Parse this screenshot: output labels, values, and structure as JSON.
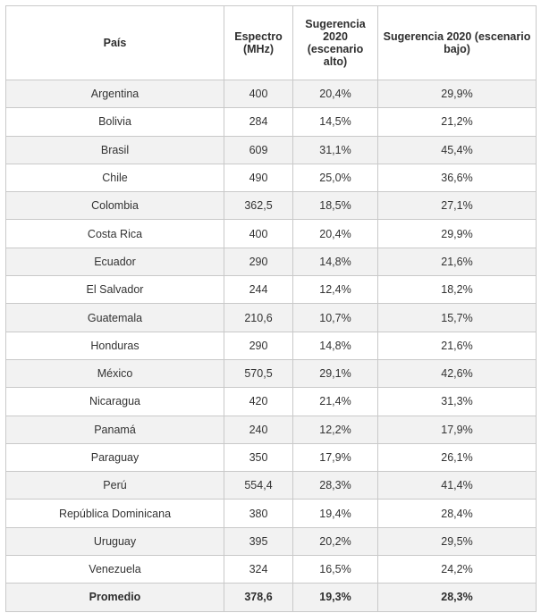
{
  "table": {
    "headers": [
      "País",
      "Espectro (MHz)",
      "Sugerencia 2020 (escenario alto)",
      "Sugerencia 2020 (escenario bajo)"
    ],
    "rows": [
      [
        "Argentina",
        "400",
        "20,4%",
        "29,9%"
      ],
      [
        "Bolivia",
        "284",
        "14,5%",
        "21,2%"
      ],
      [
        "Brasil",
        "609",
        "31,1%",
        "45,4%"
      ],
      [
        "Chile",
        "490",
        "25,0%",
        "36,6%"
      ],
      [
        "Colombia",
        "362,5",
        "18,5%",
        "27,1%"
      ],
      [
        "Costa Rica",
        "400",
        "20,4%",
        "29,9%"
      ],
      [
        "Ecuador",
        "290",
        "14,8%",
        "21,6%"
      ],
      [
        "El Salvador",
        "244",
        "12,4%",
        "18,2%"
      ],
      [
        "Guatemala",
        "210,6",
        "10,7%",
        "15,7%"
      ],
      [
        "Honduras",
        "290",
        "14,8%",
        "21,6%"
      ],
      [
        "México",
        "570,5",
        "29,1%",
        "42,6%"
      ],
      [
        "Nicaragua",
        "420",
        "21,4%",
        "31,3%"
      ],
      [
        "Panamá",
        "240",
        "12,2%",
        "17,9%"
      ],
      [
        "Paraguay",
        "350",
        "17,9%",
        "26,1%"
      ],
      [
        "Perú",
        "554,4",
        "28,3%",
        "41,4%"
      ],
      [
        "República Dominicana",
        "380",
        "19,4%",
        "28,4%"
      ],
      [
        "Uruguay",
        "395",
        "20,2%",
        "29,5%"
      ],
      [
        "Venezuela",
        "324",
        "16,5%",
        "24,2%"
      ]
    ],
    "average": [
      "Promedio",
      "378,6",
      "19,3%",
      "28,3%"
    ]
  }
}
